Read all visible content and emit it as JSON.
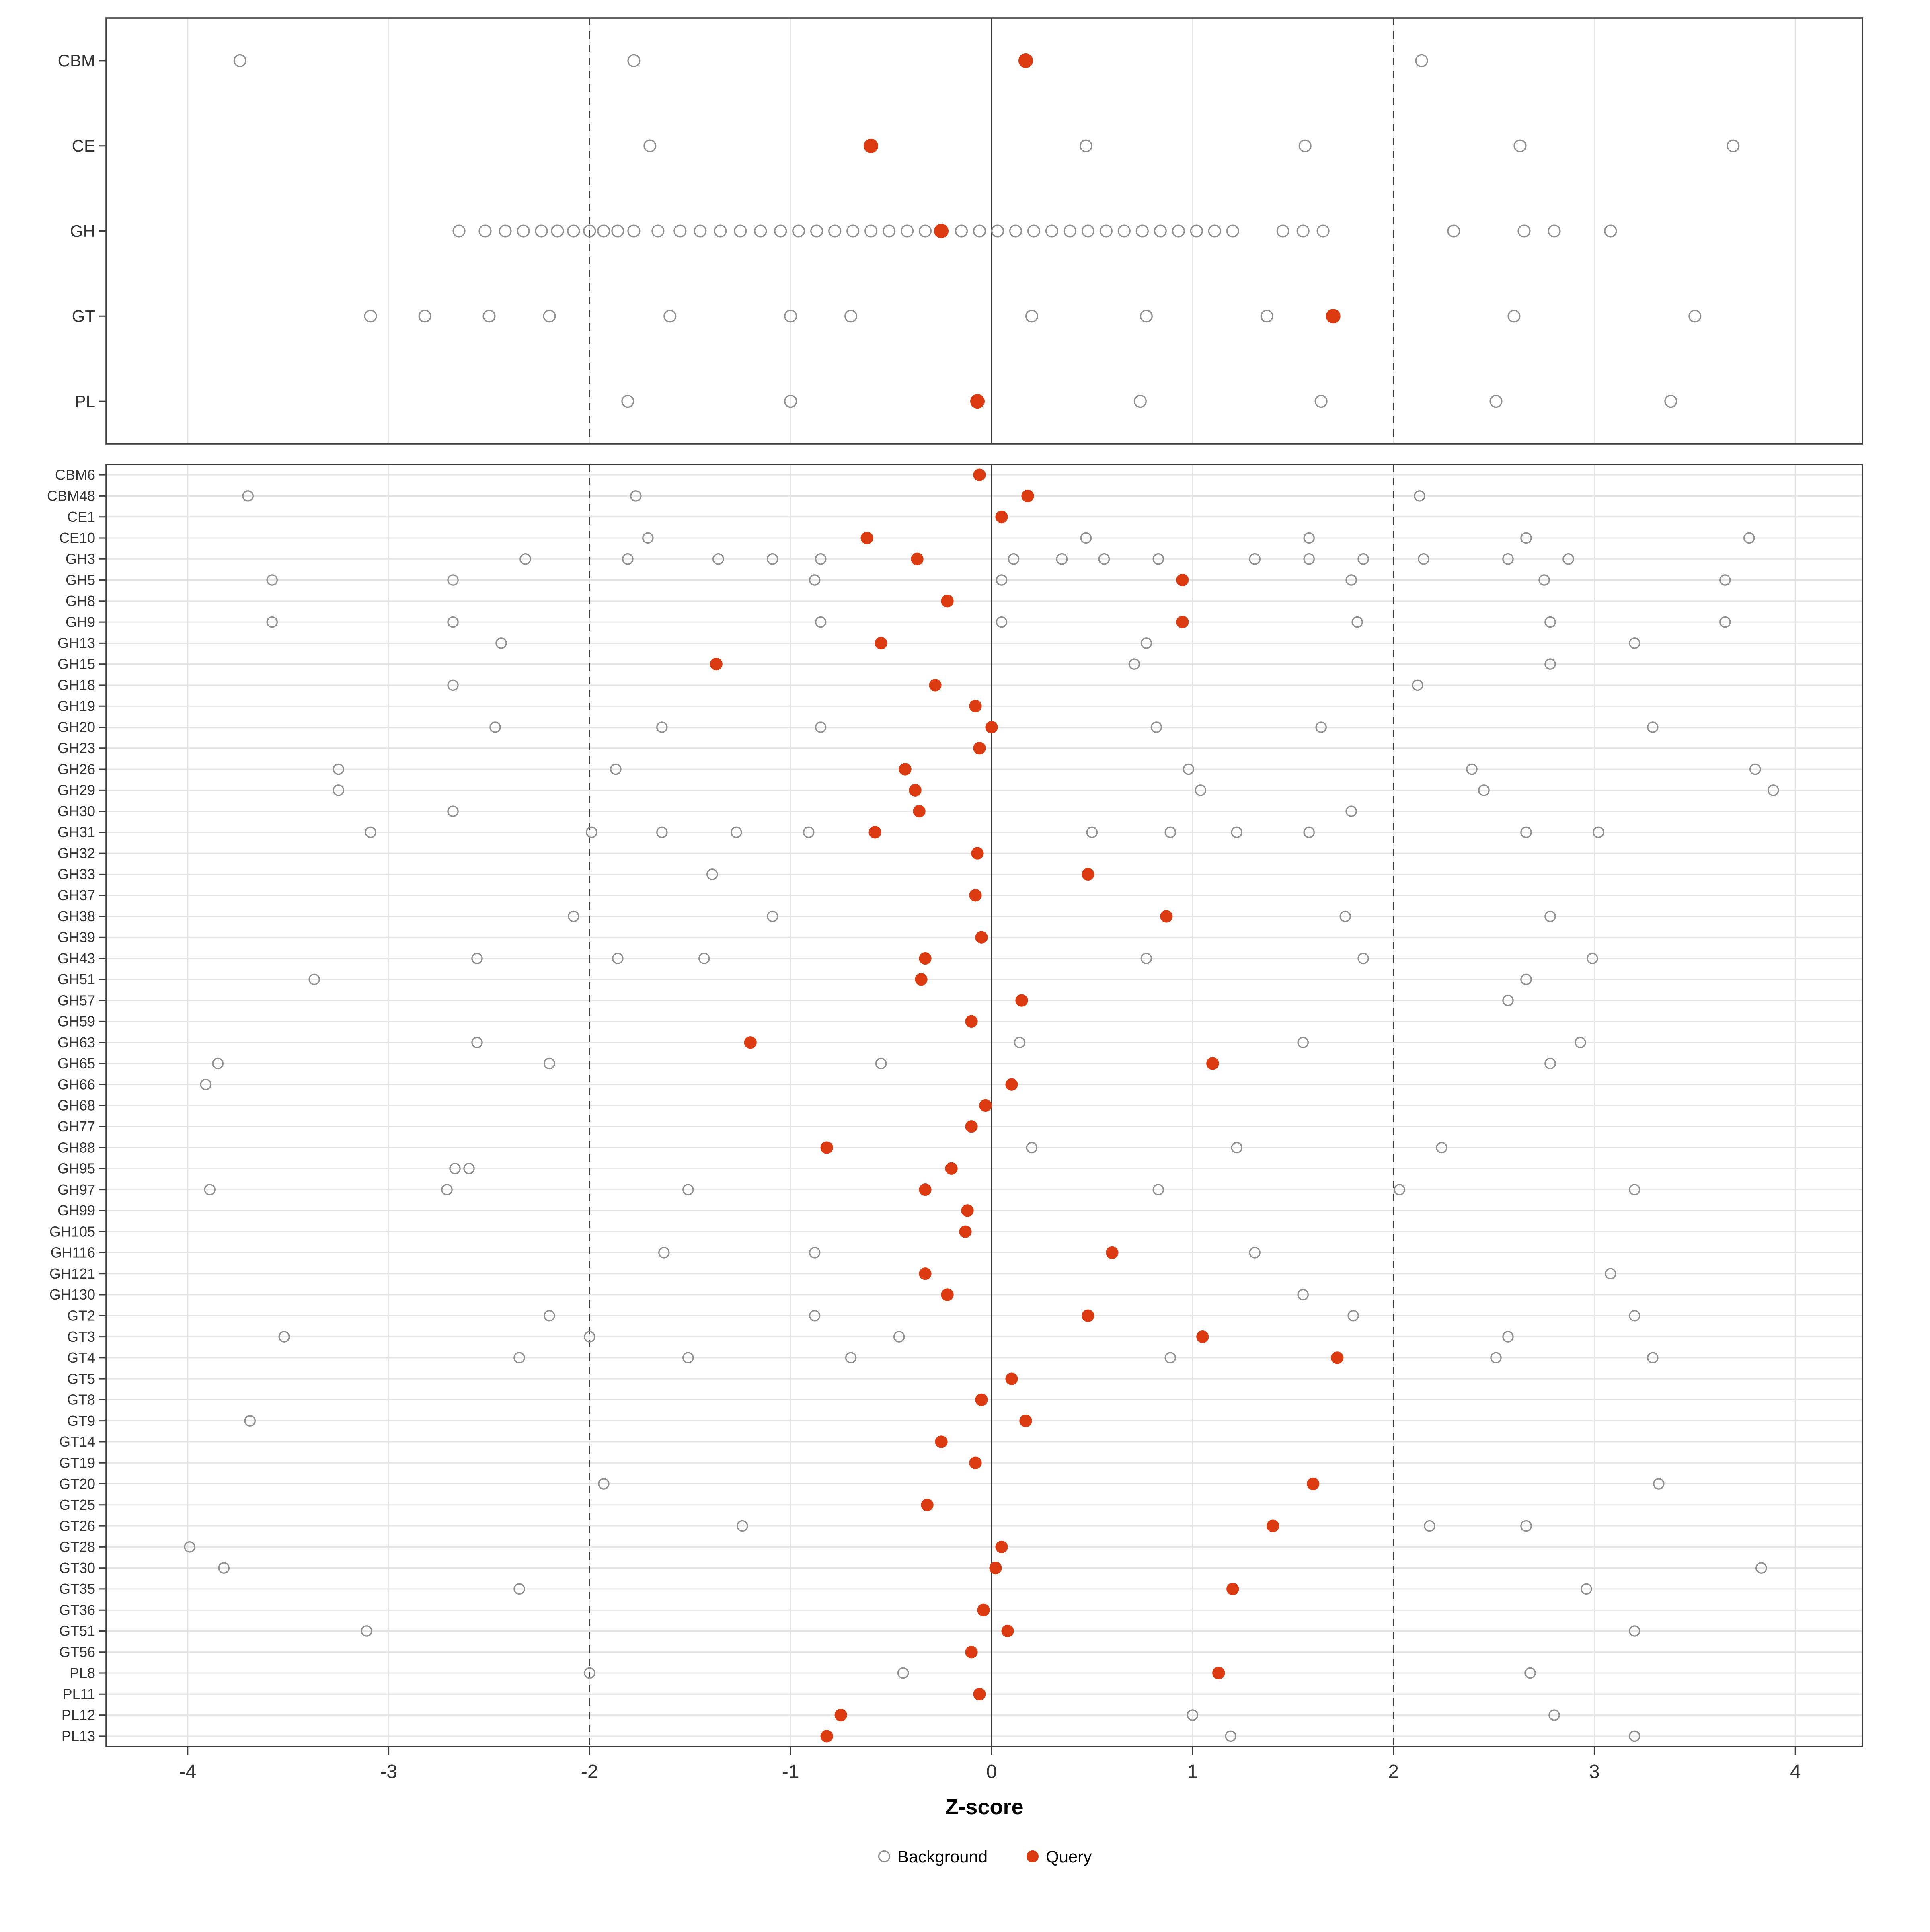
{
  "xlabel": "Z-score",
  "legend": {
    "background_label": "Background",
    "query_label": "Query"
  },
  "colors": {
    "query": "#DC3A10",
    "background_stroke": "#8F8F8F",
    "grid": "#E4E4E4",
    "axis_line": "#3F3F3F",
    "ref_line": "#3C3C3C",
    "text": "#333333"
  },
  "axis": {
    "min": -4.4,
    "max": 4.35,
    "ticks": [
      -4,
      -3,
      -2,
      -1,
      0,
      1,
      2,
      3,
      4
    ],
    "zero_line": 0,
    "dashed_lines": [
      -2,
      2
    ]
  },
  "chart_data": {
    "type": "scatter",
    "title": "",
    "xlabel": "Z-score",
    "xlim": [
      -4.4,
      4.35
    ],
    "legend_position": "bottom",
    "series_legend": [
      "Background",
      "Query"
    ],
    "panels": [
      {
        "name": "top",
        "rows": [
          {
            "label": "CBM",
            "query": 0.17,
            "background": [
              -3.74,
              -1.78,
              2.14
            ]
          },
          {
            "label": "CE",
            "query": -0.6,
            "background": [
              -1.7,
              0.47,
              1.56,
              2.63,
              3.69
            ]
          },
          {
            "label": "GH",
            "query": -0.25,
            "background": [
              -2.65,
              -2.52,
              -2.42,
              -2.33,
              -2.24,
              -2.16,
              -2.08,
              -2.0,
              -1.93,
              -1.86,
              -1.78,
              -1.66,
              -1.55,
              -1.45,
              -1.35,
              -1.25,
              -1.15,
              -1.05,
              -0.96,
              -0.87,
              -0.78,
              -0.69,
              -0.6,
              -0.51,
              -0.42,
              -0.33,
              -0.15,
              -0.06,
              0.03,
              0.12,
              0.21,
              0.3,
              0.39,
              0.48,
              0.57,
              0.66,
              0.75,
              0.84,
              0.93,
              1.02,
              1.11,
              1.2,
              1.45,
              1.55,
              1.65,
              2.3,
              2.65,
              2.8,
              3.08
            ]
          },
          {
            "label": "GT",
            "query": 1.7,
            "background": [
              -3.09,
              -2.82,
              -2.5,
              -2.2,
              -1.6,
              -1.0,
              -0.7,
              0.2,
              0.77,
              1.37,
              2.6,
              3.5
            ]
          },
          {
            "label": "PL",
            "query": -0.07,
            "background": [
              -1.81,
              -1.0,
              0.74,
              1.64,
              2.51,
              3.38
            ]
          }
        ]
      },
      {
        "name": "bottom",
        "rows": [
          {
            "label": "CBM6",
            "query": -0.06,
            "background": []
          },
          {
            "label": "CBM48",
            "query": 0.18,
            "background": [
              -3.7,
              -1.77,
              2.13
            ]
          },
          {
            "label": "CE1",
            "query": 0.05,
            "background": []
          },
          {
            "label": "CE10",
            "query": -0.62,
            "background": [
              -1.71,
              0.47,
              1.58,
              2.66,
              3.77
            ]
          },
          {
            "label": "GH3",
            "query": -0.37,
            "background": [
              -2.32,
              -1.81,
              -1.36,
              -1.09,
              -0.85,
              0.11,
              0.35,
              0.56,
              0.83,
              1.31,
              1.58,
              1.85,
              2.15,
              2.57,
              2.87
            ]
          },
          {
            "label": "GH5",
            "query": 0.95,
            "background": [
              -3.58,
              -2.68,
              -0.88,
              0.05,
              1.79,
              2.75,
              3.65
            ]
          },
          {
            "label": "GH8",
            "query": -0.22,
            "background": []
          },
          {
            "label": "GH9",
            "query": 0.95,
            "background": [
              -3.58,
              -2.68,
              -0.85,
              0.05,
              1.82,
              2.78,
              3.65
            ]
          },
          {
            "label": "GH13",
            "query": -0.55,
            "background": [
              -2.44,
              0.77,
              3.2
            ]
          },
          {
            "label": "GH15",
            "query": -1.37,
            "background": [
              0.71,
              2.78
            ]
          },
          {
            "label": "GH18",
            "query": -0.28,
            "background": [
              -2.68,
              2.12
            ]
          },
          {
            "label": "GH19",
            "query": -0.08,
            "background": []
          },
          {
            "label": "GH20",
            "query": 0.0,
            "background": [
              -2.47,
              -1.64,
              -0.85,
              0.82,
              1.64,
              3.29
            ]
          },
          {
            "label": "GH23",
            "query": -0.06,
            "background": []
          },
          {
            "label": "GH26",
            "query": -0.43,
            "background": [
              -3.25,
              -1.87,
              0.98,
              2.39,
              3.8
            ]
          },
          {
            "label": "GH29",
            "query": -0.38,
            "background": [
              -3.25,
              1.04,
              2.45,
              3.89
            ]
          },
          {
            "label": "GH30",
            "query": -0.36,
            "background": [
              -2.68,
              1.79
            ]
          },
          {
            "label": "GH31",
            "query": -0.58,
            "background": [
              -3.09,
              -1.99,
              -1.64,
              -1.27,
              -0.91,
              0.5,
              0.89,
              1.22,
              1.58,
              2.66,
              3.02
            ]
          },
          {
            "label": "GH32",
            "query": -0.07,
            "background": []
          },
          {
            "label": "GH33",
            "query": 0.48,
            "background": [
              -1.39
            ]
          },
          {
            "label": "GH37",
            "query": -0.08,
            "background": []
          },
          {
            "label": "GH38",
            "query": 0.87,
            "background": [
              -2.08,
              -1.09,
              1.76,
              2.78
            ]
          },
          {
            "label": "GH39",
            "query": -0.05,
            "background": []
          },
          {
            "label": "GH43",
            "query": -0.33,
            "background": [
              -2.56,
              -1.86,
              -1.43,
              0.77,
              1.85,
              2.99
            ]
          },
          {
            "label": "GH51",
            "query": -0.35,
            "background": [
              -3.37,
              2.66
            ]
          },
          {
            "label": "GH57",
            "query": 0.15,
            "background": [
              2.57
            ]
          },
          {
            "label": "GH59",
            "query": -0.1,
            "background": []
          },
          {
            "label": "GH63",
            "query": -1.2,
            "background": [
              -2.56,
              0.14,
              1.55,
              2.93
            ]
          },
          {
            "label": "GH65",
            "query": 1.1,
            "background": [
              -3.85,
              -2.2,
              -0.55,
              2.78
            ]
          },
          {
            "label": "GH66",
            "query": 0.1,
            "background": [
              -3.91
            ]
          },
          {
            "label": "GH68",
            "query": -0.03,
            "background": []
          },
          {
            "label": "GH77",
            "query": -0.1,
            "background": []
          },
          {
            "label": "GH88",
            "query": -0.82,
            "background": [
              0.2,
              1.22,
              2.24
            ]
          },
          {
            "label": "GH95",
            "query": -0.2,
            "background": [
              -2.67,
              -2.6
            ]
          },
          {
            "label": "GH97",
            "query": -0.33,
            "background": [
              -3.89,
              -2.71,
              -1.51,
              0.83,
              2.03,
              3.2
            ]
          },
          {
            "label": "GH99",
            "query": -0.12,
            "background": []
          },
          {
            "label": "GH105",
            "query": -0.13,
            "background": []
          },
          {
            "label": "GH116",
            "query": 0.6,
            "background": [
              -1.63,
              -0.88,
              1.31
            ]
          },
          {
            "label": "GH121",
            "query": -0.33,
            "background": [
              3.08
            ]
          },
          {
            "label": "GH130",
            "query": -0.22,
            "background": [
              1.55
            ]
          },
          {
            "label": "GT2",
            "query": 0.48,
            "background": [
              -2.2,
              -0.88,
              1.8,
              3.2
            ]
          },
          {
            "label": "GT3",
            "query": 1.05,
            "background": [
              -3.52,
              -2.0,
              -0.46,
              2.57
            ]
          },
          {
            "label": "GT4",
            "query": 1.72,
            "background": [
              -2.35,
              -1.51,
              -0.7,
              0.89,
              2.51,
              3.29
            ]
          },
          {
            "label": "GT5",
            "query": 0.1,
            "background": []
          },
          {
            "label": "GT8",
            "query": -0.05,
            "background": []
          },
          {
            "label": "GT9",
            "query": 0.17,
            "background": [
              -3.69
            ]
          },
          {
            "label": "GT14",
            "query": -0.25,
            "background": []
          },
          {
            "label": "GT19",
            "query": -0.08,
            "background": []
          },
          {
            "label": "GT20",
            "query": 1.6,
            "background": [
              -1.93,
              3.32
            ]
          },
          {
            "label": "GT25",
            "query": -0.32,
            "background": []
          },
          {
            "label": "GT26",
            "query": 1.4,
            "background": [
              -1.24,
              2.18,
              2.66
            ]
          },
          {
            "label": "GT28",
            "query": 0.05,
            "background": [
              -3.99
            ]
          },
          {
            "label": "GT30",
            "query": 0.02,
            "background": [
              -3.82,
              3.83
            ]
          },
          {
            "label": "GT35",
            "query": 1.2,
            "background": [
              -2.35,
              2.96
            ]
          },
          {
            "label": "GT36",
            "query": -0.04,
            "background": []
          },
          {
            "label": "GT51",
            "query": 0.08,
            "background": [
              -3.11,
              3.2
            ]
          },
          {
            "label": "GT56",
            "query": -0.1,
            "background": []
          },
          {
            "label": "PL8",
            "query": 1.13,
            "background": [
              -2.0,
              -0.44,
              2.68
            ]
          },
          {
            "label": "PL11",
            "query": -0.06,
            "background": []
          },
          {
            "label": "PL12",
            "query": -0.75,
            "background": [
              1.0,
              2.8
            ]
          },
          {
            "label": "PL13",
            "query": -0.82,
            "background": [
              1.19,
              3.2
            ]
          }
        ]
      }
    ]
  }
}
